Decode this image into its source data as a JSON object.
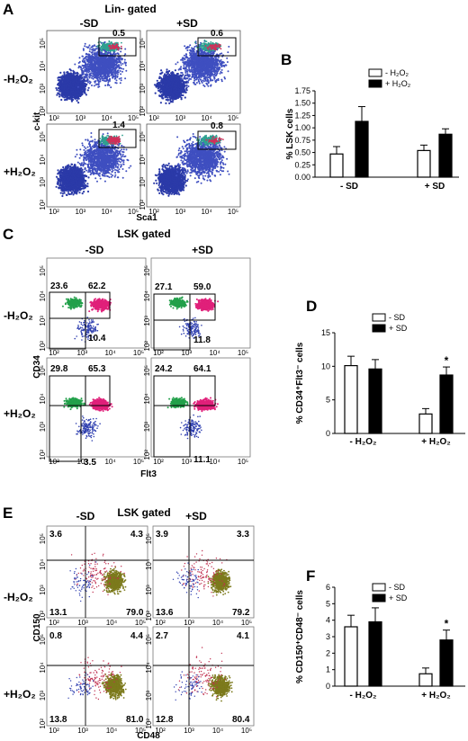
{
  "panels": {
    "A": {
      "label": "A",
      "title": "Lin- gated",
      "col_labels": [
        "-SD",
        "+SD"
      ],
      "row_labels": [
        "-H₂O₂",
        "+H₂O₂"
      ],
      "xlabel": "Sca1",
      "ylabel": "c-kit",
      "gate_values": [
        [
          "0.5",
          "0.6"
        ],
        [
          "1.4",
          "0.8"
        ]
      ]
    },
    "C": {
      "label": "C",
      "title": "LSK gated",
      "col_labels": [
        "-SD",
        "+SD"
      ],
      "row_labels": [
        "-H₂O₂",
        "+H₂O₂"
      ],
      "xlabel": "Flt3",
      "ylabel": "CD34",
      "gates": [
        [
          {
            "tl": "23.6",
            "tr": "62.2",
            "b": "10.4"
          },
          {
            "tl": "27.1",
            "tr": "59.0",
            "b": "11.8"
          }
        ],
        [
          {
            "tl": "29.8",
            "tr": "65.3",
            "b": "3.5"
          },
          {
            "tl": "24.2",
            "tr": "64.1",
            "b": "11.1"
          }
        ]
      ]
    },
    "E": {
      "label": "E",
      "title": "LSK gated",
      "col_labels": [
        "-SD",
        "+SD"
      ],
      "row_labels": [
        "-H₂O₂",
        "+H₂O₂"
      ],
      "xlabel": "CD48",
      "ylabel": "CD150",
      "quads": [
        [
          {
            "ul": "3.6",
            "ur": "4.3",
            "ll": "13.1",
            "lr": "79.0"
          },
          {
            "ul": "3.9",
            "ur": "3.3",
            "ll": "13.6",
            "lr": "79.2"
          }
        ],
        [
          {
            "ul": "0.8",
            "ur": "4.4",
            "ll": "13.8",
            "lr": "81.0"
          },
          {
            "ul": "2.7",
            "ur": "4.1",
            "ll": "12.8",
            "lr": "80.4"
          }
        ]
      ]
    },
    "B": {
      "label": "B"
    },
    "D": {
      "label": "D"
    },
    "F": {
      "label": "F"
    }
  },
  "tick_labels": {
    "x": [
      "10²",
      "10³",
      "10⁴",
      "10⁵"
    ],
    "y": [
      "10²",
      "10³",
      "10⁴",
      "10⁵"
    ]
  },
  "chart_data": [
    {
      "type": "bar",
      "panel": "B",
      "categories": [
        "- SD",
        "+ SD"
      ],
      "series": [
        {
          "name": "- H₂O₂",
          "values": [
            0.47,
            0.54
          ],
          "errors": [
            0.15,
            0.11
          ],
          "fill": "#ffffff"
        },
        {
          "name": "+ H₂O₂",
          "values": [
            1.13,
            0.87
          ],
          "errors": [
            0.3,
            0.11
          ],
          "fill": "#000000"
        }
      ],
      "ylabel": "% LSK cells",
      "ylim": [
        0,
        1.75
      ],
      "yticks": [
        "0.00",
        "0.25",
        "0.50",
        "0.75",
        "1.00",
        "1.25",
        "1.50",
        "1.75"
      ],
      "significance": [],
      "legend": "top-right"
    },
    {
      "type": "bar",
      "panel": "D",
      "categories": [
        "- H₂O₂",
        "+ H₂O₂"
      ],
      "series": [
        {
          "name": "- SD",
          "values": [
            10.1,
            2.9
          ],
          "errors": [
            1.4,
            0.8
          ],
          "fill": "#ffffff"
        },
        {
          "name": "+ SD",
          "values": [
            9.6,
            8.7
          ],
          "errors": [
            1.4,
            1.2
          ],
          "fill": "#000000"
        }
      ],
      "ylabel": "% CD34⁺Flt3⁻ cells",
      "ylim": [
        0,
        15
      ],
      "yticks": [
        "0",
        "5",
        "10",
        "15"
      ],
      "significance": [
        "",
        "*"
      ],
      "legend": "top-right"
    },
    {
      "type": "bar",
      "panel": "F",
      "categories": [
        "- H₂O₂",
        "+ H₂O₂"
      ],
      "series": [
        {
          "name": "- SD",
          "values": [
            3.6,
            0.75
          ],
          "errors": [
            0.7,
            0.35
          ],
          "fill": "#ffffff"
        },
        {
          "name": "+ SD",
          "values": [
            3.9,
            2.8
          ],
          "errors": [
            0.85,
            0.6
          ],
          "fill": "#000000"
        }
      ],
      "ylabel": "% CD150⁺CD48⁻ cells",
      "ylim": [
        0,
        6
      ],
      "yticks": [
        "0",
        "1",
        "2",
        "3",
        "4",
        "5",
        "6"
      ],
      "significance": [
        "",
        "*"
      ],
      "legend": "top-right"
    }
  ]
}
